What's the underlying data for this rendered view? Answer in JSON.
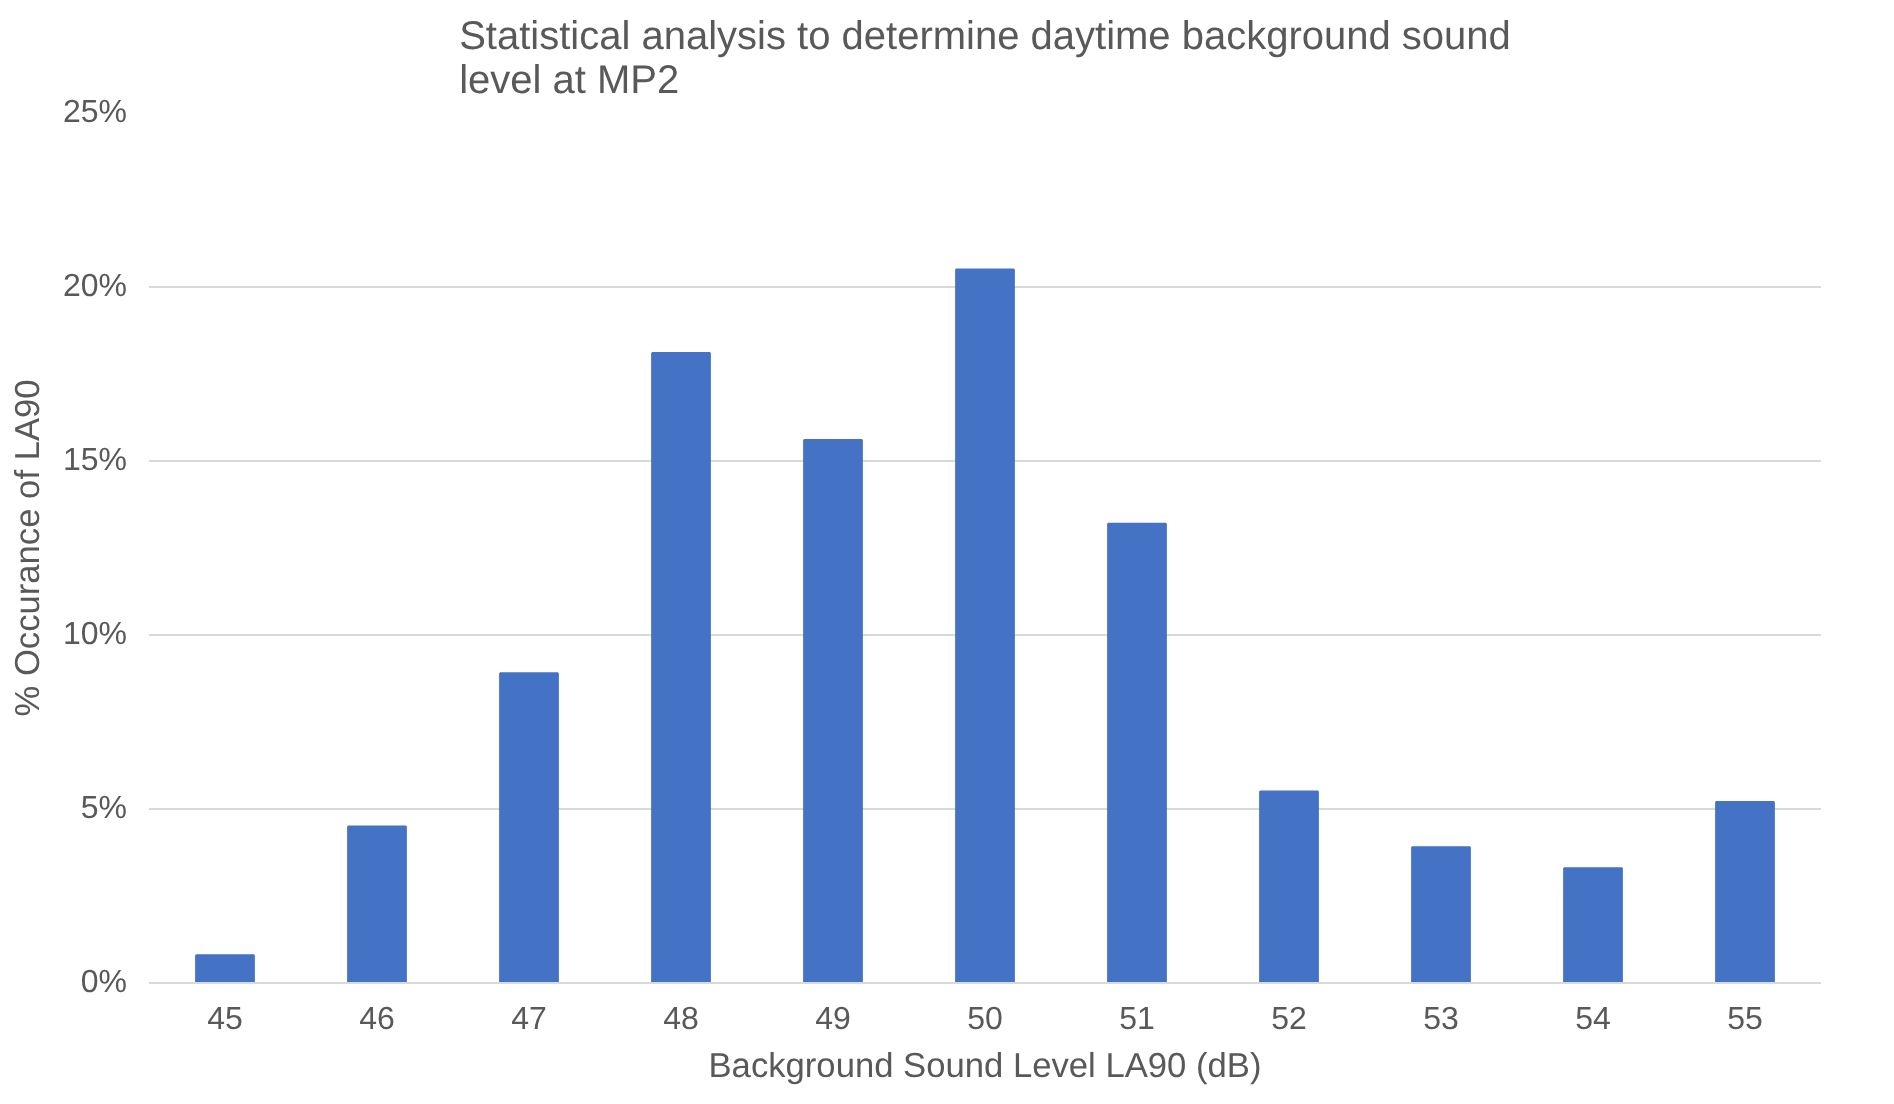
{
  "chart_data": {
    "type": "bar",
    "title": "Statistical analysis to determine daytime background sound level at MP2",
    "xlabel": "Background Sound Level LA90 (dB)",
    "ylabel": "% Occurance of LA90",
    "categories": [
      "45",
      "46",
      "47",
      "48",
      "49",
      "50",
      "51",
      "52",
      "53",
      "54",
      "55"
    ],
    "values": [
      0.8,
      4.5,
      8.9,
      18.1,
      15.6,
      20.5,
      13.2,
      5.5,
      3.9,
      3.3,
      5.2
    ],
    "color": "#4472c4",
    "ylim": [
      0,
      25
    ],
    "yticks": [
      {
        "value": 0,
        "label": "0%"
      },
      {
        "value": 5,
        "label": "5%"
      },
      {
        "value": 10,
        "label": "10%"
      },
      {
        "value": 15,
        "label": "15%"
      },
      {
        "value": 20,
        "label": "20%"
      },
      {
        "value": 25,
        "label": "25%"
      }
    ],
    "grid": "y"
  }
}
